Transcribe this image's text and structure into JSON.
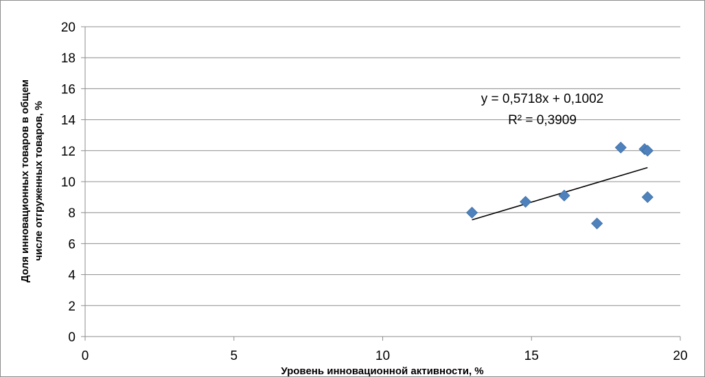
{
  "chart_data": {
    "type": "scatter",
    "xlabel": "Уровень инновационной активности, %",
    "ylabel_lines": [
      "Доля инновационных товаров в общем",
      "числе отгруженных товаров, %"
    ],
    "xlim": [
      0,
      20
    ],
    "ylim": [
      0,
      20
    ],
    "x_ticks": [
      "0",
      "5",
      "10",
      "15",
      "20"
    ],
    "y_ticks": [
      "0",
      "2",
      "4",
      "6",
      "8",
      "10",
      "12",
      "14",
      "16",
      "18",
      "20"
    ],
    "grid": "horizontal",
    "marker": "diamond",
    "color": "#4f81bd",
    "points": [
      {
        "x": 13.0,
        "y": 8.0
      },
      {
        "x": 14.8,
        "y": 8.7
      },
      {
        "x": 16.1,
        "y": 9.1
      },
      {
        "x": 17.2,
        "y": 7.3
      },
      {
        "x": 18.0,
        "y": 12.2
      },
      {
        "x": 18.8,
        "y": 12.1
      },
      {
        "x": 18.9,
        "y": 12.0
      },
      {
        "x": 18.9,
        "y": 9.0
      }
    ],
    "trendline": {
      "slope": 0.5718,
      "intercept": 0.1002,
      "x_range": [
        13.0,
        18.9
      ],
      "equation": "y = 0,5718x + 0,1002",
      "r_squared": "R² = 0,3909"
    }
  }
}
